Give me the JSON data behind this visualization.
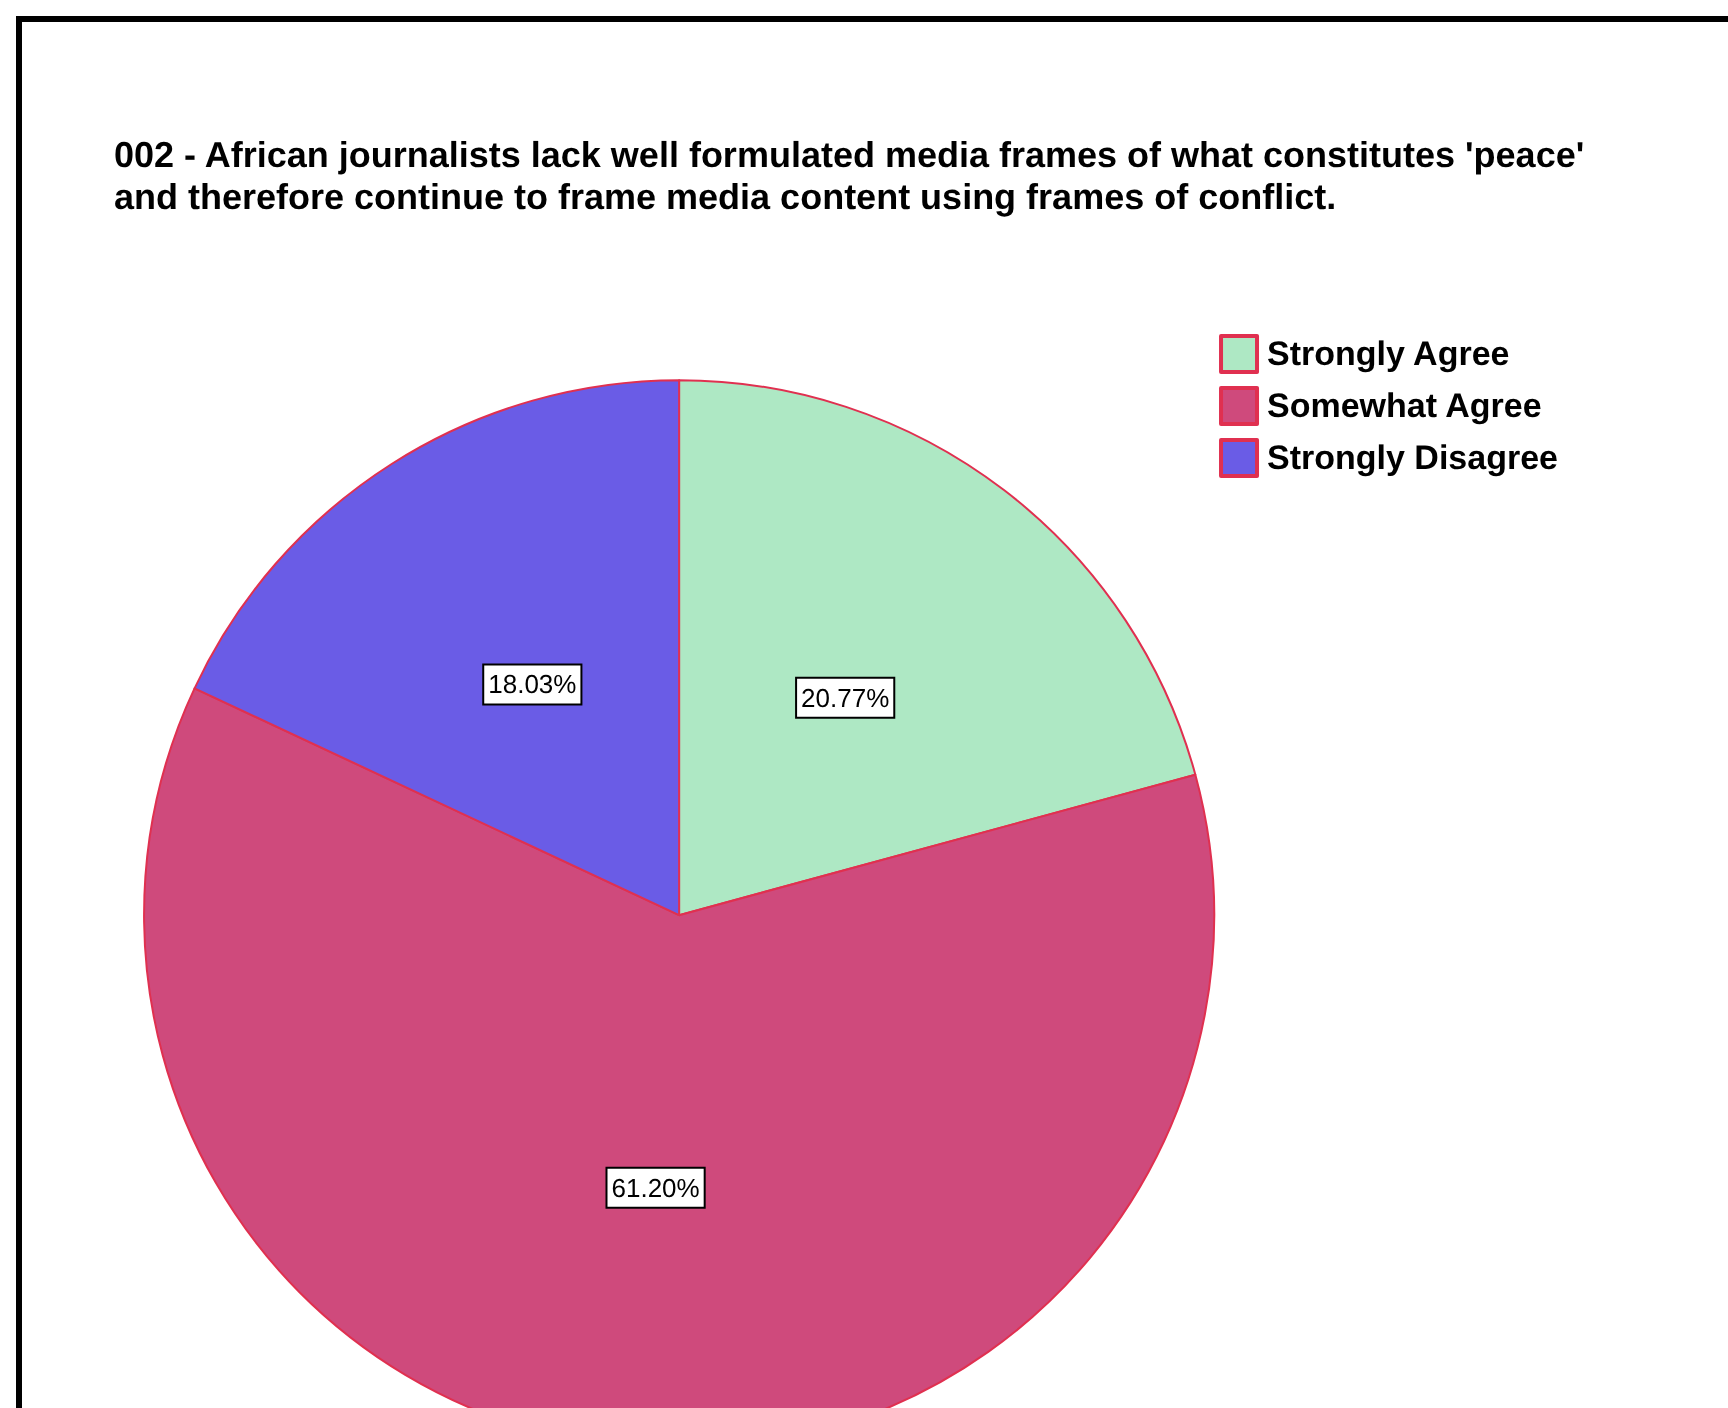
{
  "chart_data": {
    "type": "pie",
    "title": "002 - African journalists lack well formulated media frames of what constitutes 'peace' and therefore continue to frame media content using frames of conflict.",
    "categories": [
      "Strongly Agree",
      "Somewhat Agree",
      "Strongly Disagree"
    ],
    "values": [
      20.77,
      61.2,
      18.03
    ],
    "colors": [
      "#aee8c4",
      "#cf4a7c",
      "#6a5ce6"
    ],
    "value_labels": [
      "20.77%",
      "61.20%",
      "18.03%"
    ],
    "legend": "top right"
  }
}
